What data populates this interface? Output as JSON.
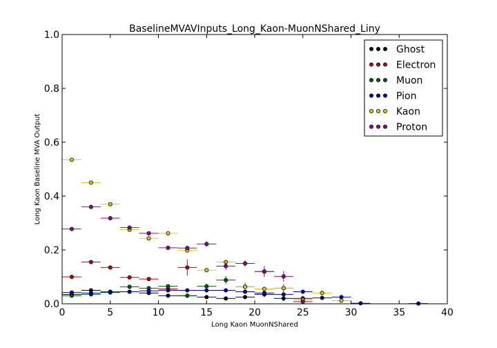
{
  "chart_data": {
    "type": "scatter",
    "title": "BaselineMVAVInputs_Long_Kaon-MuonNShared_Liny",
    "xlabel": "Long Kaon MuonNShared",
    "ylabel": "Long Kaon Baseline MVA Output",
    "xlim": [
      0,
      40
    ],
    "ylim": [
      0,
      1.0
    ],
    "xticks": [
      "0",
      "5",
      "10",
      "15",
      "20",
      "25",
      "30",
      "35",
      "40"
    ],
    "yticks": [
      "0.0",
      "0.2",
      "0.4",
      "0.6",
      "0.8",
      "1.0"
    ],
    "legend_position": "top-right",
    "x_error": 1,
    "series": [
      {
        "name": "Ghost",
        "color": "#000000",
        "x": [
          1,
          3,
          5,
          7,
          9,
          11,
          13,
          15,
          17,
          19,
          21,
          23,
          25
        ],
        "y": [
          0.035,
          0.05,
          0.045,
          0.045,
          0.04,
          0.03,
          0.03,
          0.025,
          0.02,
          0.025,
          0.035,
          0.02,
          0.02
        ],
        "yerr": [
          0.003,
          0.003,
          0.003,
          0.004,
          0.004,
          0.005,
          0.005,
          0.006,
          0.007,
          0.008,
          0.01,
          0.01,
          0.01
        ]
      },
      {
        "name": "Electron",
        "color": "#cc0000",
        "x": [
          1,
          3,
          5,
          7,
          9,
          11,
          13
        ],
        "y": [
          0.1,
          0.155,
          0.135,
          0.098,
          0.092,
          0.055,
          0.135
        ],
        "yerr": [
          0.004,
          0.005,
          0.005,
          0.006,
          0.006,
          0.01,
          0.03
        ]
      },
      {
        "name": "Muon",
        "color": "#006600",
        "x": [
          1,
          3,
          5,
          7,
          9,
          11,
          13,
          15,
          17,
          19,
          21,
          23
        ],
        "y": [
          0.03,
          0.035,
          0.045,
          0.063,
          0.058,
          0.065,
          0.03,
          0.065,
          0.088,
          0.063,
          0.12,
          0.058
        ],
        "yerr": [
          0.003,
          0.003,
          0.004,
          0.004,
          0.005,
          0.006,
          0.007,
          0.01,
          0.015,
          0.015,
          0.02,
          0.015
        ]
      },
      {
        "name": "Pion",
        "color": "#0000cc",
        "x": [
          1,
          3,
          5,
          7,
          9,
          11,
          13,
          15,
          17,
          19,
          21,
          23,
          25,
          27,
          29,
          31,
          37
        ],
        "y": [
          0.042,
          0.04,
          0.042,
          0.045,
          0.048,
          0.05,
          0.05,
          0.05,
          0.05,
          0.045,
          0.04,
          0.035,
          0.045,
          0.022,
          0.025,
          0.002,
          0.001
        ],
        "yerr": [
          0.002,
          0.002,
          0.002,
          0.002,
          0.002,
          0.002,
          0.003,
          0.003,
          0.003,
          0.004,
          0.004,
          0.005,
          0.006,
          0.006,
          0.007,
          0.002,
          0.001
        ]
      },
      {
        "name": "Kaon",
        "color": "#e6c800",
        "x": [
          1,
          3,
          5,
          7,
          9,
          11,
          13,
          15,
          17,
          19,
          21,
          23,
          25,
          27,
          29
        ],
        "y": [
          0.535,
          0.45,
          0.37,
          0.275,
          0.243,
          0.262,
          0.198,
          0.125,
          0.155,
          0.063,
          0.055,
          0.058,
          0.015,
          0.04,
          0.012
        ],
        "yerr": [
          0.003,
          0.003,
          0.003,
          0.004,
          0.004,
          0.005,
          0.006,
          0.007,
          0.008,
          0.008,
          0.008,
          0.009,
          0.008,
          0.01,
          0.006
        ]
      },
      {
        "name": "Proton",
        "color": "#990099",
        "x": [
          1,
          3,
          5,
          7,
          9,
          11,
          13,
          15,
          17,
          19,
          21,
          23,
          25
        ],
        "y": [
          0.278,
          0.36,
          0.318,
          0.283,
          0.262,
          0.208,
          0.207,
          0.222,
          0.14,
          0.15,
          0.12,
          0.102,
          0.008
        ],
        "yerr": [
          0.004,
          0.005,
          0.005,
          0.005,
          0.006,
          0.006,
          0.008,
          0.01,
          0.015,
          0.012,
          0.02,
          0.02,
          0.008
        ]
      }
    ]
  }
}
